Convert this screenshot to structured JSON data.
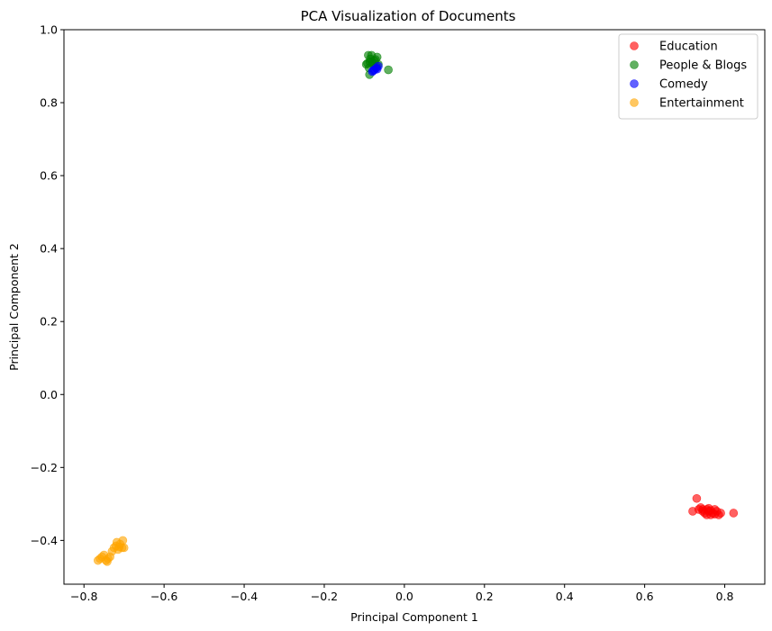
{
  "chart_data": {
    "type": "scatter",
    "title": "PCA Visualization of Documents",
    "xlabel": "Principal Component 1",
    "ylabel": "Principal Component 2",
    "xlim": [
      -0.85,
      0.9
    ],
    "ylim": [
      -0.52,
      1.0
    ],
    "xticks": [
      -0.8,
      -0.6,
      -0.4,
      -0.2,
      0.0,
      0.2,
      0.4,
      0.6,
      0.8
    ],
    "xtick_labels": [
      "−0.8",
      "−0.6",
      "−0.4",
      "−0.2",
      "0.0",
      "0.2",
      "0.4",
      "0.6",
      "0.8"
    ],
    "yticks": [
      -0.4,
      -0.2,
      0.0,
      0.2,
      0.4,
      0.6,
      0.8,
      1.0
    ],
    "ytick_labels": [
      "−0.4",
      "−0.2",
      "0.0",
      "0.2",
      "0.4",
      "0.6",
      "0.8",
      "1.0"
    ],
    "grid": false,
    "legend_position": "top-right",
    "series": [
      {
        "name": "Education",
        "color": "#ff0000",
        "points": [
          [
            0.72,
            -0.32
          ],
          [
            0.73,
            -0.285
          ],
          [
            0.735,
            -0.315
          ],
          [
            0.74,
            -0.31
          ],
          [
            0.745,
            -0.32
          ],
          [
            0.75,
            -0.325
          ],
          [
            0.755,
            -0.315
          ],
          [
            0.76,
            -0.32
          ],
          [
            0.765,
            -0.33
          ],
          [
            0.77,
            -0.325
          ],
          [
            0.775,
            -0.315
          ],
          [
            0.78,
            -0.32
          ],
          [
            0.785,
            -0.33
          ],
          [
            0.79,
            -0.325
          ],
          [
            0.755,
            -0.33
          ],
          [
            0.745,
            -0.315
          ],
          [
            0.765,
            -0.318
          ],
          [
            0.775,
            -0.328
          ],
          [
            0.76,
            -0.312
          ],
          [
            0.822,
            -0.325
          ]
        ]
      },
      {
        "name": "People & Blogs",
        "color": "#008000",
        "points": [
          [
            -0.095,
            0.905
          ],
          [
            -0.09,
            0.93
          ],
          [
            -0.085,
            0.92
          ],
          [
            -0.08,
            0.91
          ],
          [
            -0.088,
            0.895
          ],
          [
            -0.075,
            0.915
          ],
          [
            -0.07,
            0.9
          ],
          [
            -0.065,
            0.905
          ],
          [
            -0.082,
            0.93
          ],
          [
            -0.068,
            0.925
          ],
          [
            -0.078,
            0.905
          ],
          [
            -0.086,
            0.912
          ],
          [
            -0.092,
            0.908
          ],
          [
            -0.087,
            0.877
          ],
          [
            -0.04,
            0.89
          ],
          [
            -0.072,
            0.918
          ]
        ]
      },
      {
        "name": "Comedy",
        "color": "#0000ff",
        "points": [
          [
            -0.08,
            0.885
          ],
          [
            -0.075,
            0.89
          ],
          [
            -0.07,
            0.895
          ],
          [
            -0.065,
            0.9
          ],
          [
            -0.078,
            0.888
          ],
          [
            -0.068,
            0.892
          ]
        ]
      },
      {
        "name": "Entertainment",
        "color": "#ffa500",
        "points": [
          [
            -0.765,
            -0.455
          ],
          [
            -0.76,
            -0.45
          ],
          [
            -0.755,
            -0.445
          ],
          [
            -0.75,
            -0.44
          ],
          [
            -0.745,
            -0.455
          ],
          [
            -0.74,
            -0.45
          ],
          [
            -0.735,
            -0.445
          ],
          [
            -0.73,
            -0.43
          ],
          [
            -0.725,
            -0.42
          ],
          [
            -0.72,
            -0.415
          ],
          [
            -0.715,
            -0.425
          ],
          [
            -0.71,
            -0.41
          ],
          [
            -0.705,
            -0.42
          ],
          [
            -0.703,
            -0.4
          ],
          [
            -0.7,
            -0.42
          ],
          [
            -0.718,
            -0.405
          ],
          [
            -0.712,
            -0.418
          ],
          [
            -0.742,
            -0.458
          ]
        ]
      }
    ]
  }
}
